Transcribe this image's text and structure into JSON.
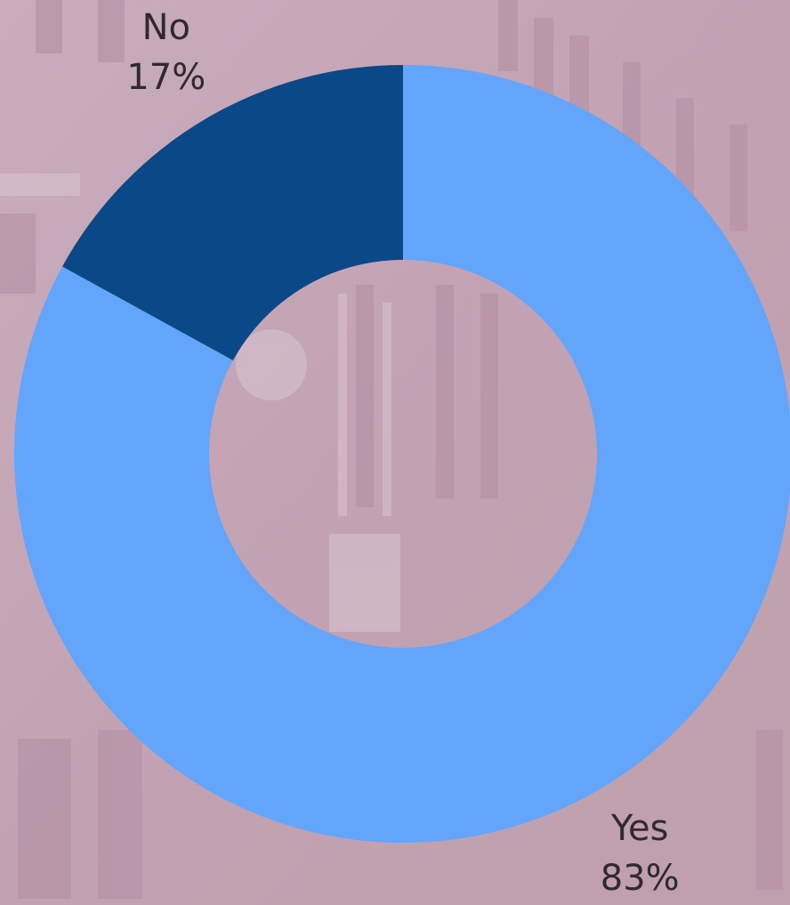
{
  "chart_data": {
    "type": "donut",
    "categories": [
      "Yes",
      "No"
    ],
    "values": [
      83,
      17
    ],
    "value_labels": [
      "83%",
      "17%"
    ],
    "colors": [
      "#63a5fa",
      "#0a4887"
    ]
  }
}
